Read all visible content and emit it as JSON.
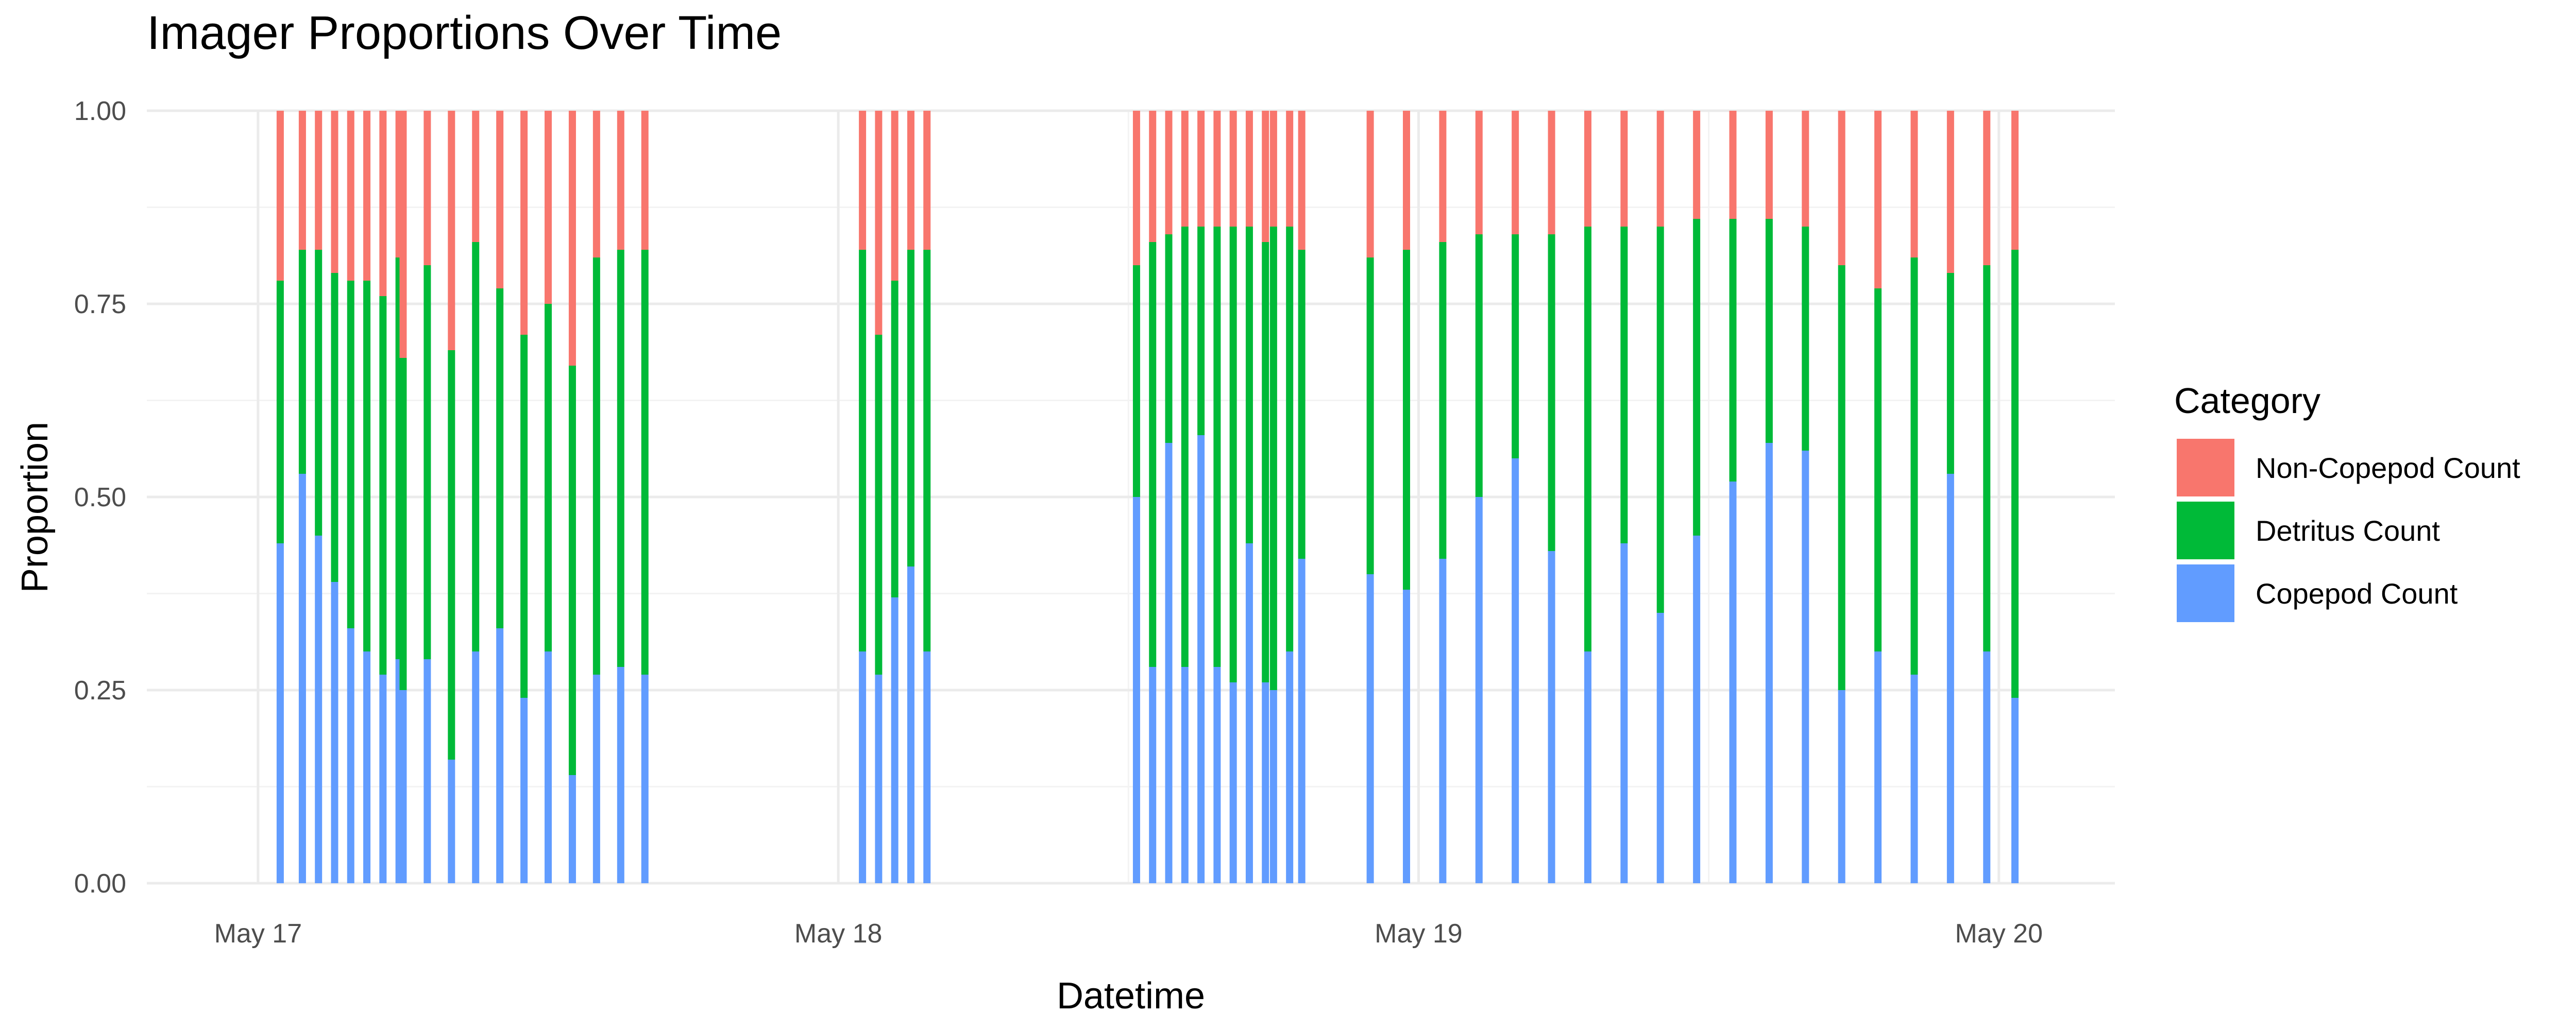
{
  "chart_data": {
    "type": "bar",
    "stacked": true,
    "title": "Imager Proportions Over Time",
    "xlabel": "Datetime",
    "ylabel": "Proportion",
    "ylim": [
      0,
      1
    ],
    "xlim": [
      "2024-05-16T19:24",
      "2024-05-20T04:48"
    ],
    "y_ticks": [
      "0.00",
      "0.25",
      "0.50",
      "0.75",
      "1.00"
    ],
    "y_tick_values": [
      0,
      0.25,
      0.5,
      0.75,
      1
    ],
    "x_ticks": [
      "May 17",
      "May 18",
      "May 19",
      "May 20"
    ],
    "x_tick_values": [
      "2024-05-17T00:00",
      "2024-05-18T00:00",
      "2024-05-19T00:00",
      "2024-05-20T00:00"
    ],
    "grid": true,
    "legend": {
      "title": "Category",
      "position": "right"
    },
    "legend_order": [
      "Non-Copepod Count",
      "Detritus Count",
      "Copepod Count"
    ],
    "stack_order": [
      "Copepod Count",
      "Detritus Count",
      "Non-Copepod Count"
    ],
    "colors": {
      "Non-Copepod Count": "#F8766D",
      "Detritus Count": "#00BA38",
      "Copepod Count": "#619CFF"
    },
    "x": [
      "2024-05-17T00:55",
      "2024-05-17T01:50",
      "2024-05-17T02:30",
      "2024-05-17T03:10",
      "2024-05-17T03:50",
      "2024-05-17T04:30",
      "2024-05-17T05:10",
      "2024-05-17T05:50",
      "2024-05-17T06:00",
      "2024-05-17T07:00",
      "2024-05-17T08:00",
      "2024-05-17T09:00",
      "2024-05-17T10:00",
      "2024-05-17T11:00",
      "2024-05-17T12:00",
      "2024-05-17T13:00",
      "2024-05-17T14:00",
      "2024-05-17T15:00",
      "2024-05-17T16:00",
      "2024-05-18T01:00",
      "2024-05-18T01:40",
      "2024-05-18T02:20",
      "2024-05-18T03:00",
      "2024-05-18T03:40",
      "2024-05-18T12:20",
      "2024-05-18T13:00",
      "2024-05-18T13:40",
      "2024-05-18T14:20",
      "2024-05-18T15:00",
      "2024-05-18T15:40",
      "2024-05-18T16:20",
      "2024-05-18T17:00",
      "2024-05-18T17:40",
      "2024-05-18T18:00",
      "2024-05-18T18:40",
      "2024-05-18T19:10",
      "2024-05-18T22:00",
      "2024-05-18T23:30",
      "2024-05-19T01:00",
      "2024-05-19T02:30",
      "2024-05-19T04:00",
      "2024-05-19T05:30",
      "2024-05-19T07:00",
      "2024-05-19T08:30",
      "2024-05-19T10:00",
      "2024-05-19T11:30",
      "2024-05-19T13:00",
      "2024-05-19T14:30",
      "2024-05-19T16:00",
      "2024-05-19T17:30",
      "2024-05-19T19:00",
      "2024-05-19T20:30",
      "2024-05-19T22:00",
      "2024-05-19T23:30",
      "2024-05-20T00:40"
    ],
    "series": [
      {
        "name": "Copepod Count",
        "values": [
          0.44,
          0.53,
          0.45,
          0.39,
          0.33,
          0.3,
          0.27,
          0.29,
          0.25,
          0.29,
          0.16,
          0.3,
          0.33,
          0.24,
          0.3,
          0.14,
          0.27,
          0.28,
          0.27,
          0.3,
          0.27,
          0.37,
          0.41,
          0.3,
          0.5,
          0.28,
          0.57,
          0.28,
          0.58,
          0.28,
          0.26,
          0.44,
          0.26,
          0.25,
          0.3,
          0.42,
          0.4,
          0.38,
          0.42,
          0.5,
          0.55,
          0.43,
          0.3,
          0.44,
          0.35,
          0.45,
          0.52,
          0.57,
          0.56,
          0.25,
          0.3,
          0.27,
          0.53,
          0.3,
          0.24
        ]
      },
      {
        "name": "Detritus Count",
        "values": [
          0.34,
          0.29,
          0.37,
          0.4,
          0.45,
          0.48,
          0.49,
          0.52,
          0.43,
          0.51,
          0.53,
          0.53,
          0.44,
          0.47,
          0.45,
          0.53,
          0.54,
          0.54,
          0.55,
          0.52,
          0.44,
          0.41,
          0.41,
          0.52,
          0.3,
          0.55,
          0.27,
          0.57,
          0.27,
          0.57,
          0.59,
          0.41,
          0.57,
          0.6,
          0.55,
          0.4,
          0.41,
          0.44,
          0.41,
          0.34,
          0.29,
          0.41,
          0.55,
          0.41,
          0.5,
          0.41,
          0.34,
          0.29,
          0.29,
          0.55,
          0.47,
          0.54,
          0.26,
          0.5,
          0.58
        ]
      },
      {
        "name": "Non-Copepod Count",
        "values": [
          0.22,
          0.18,
          0.18,
          0.21,
          0.22,
          0.22,
          0.24,
          0.19,
          0.32,
          0.2,
          0.31,
          0.17,
          0.23,
          0.29,
          0.25,
          0.33,
          0.19,
          0.18,
          0.18,
          0.18,
          0.29,
          0.22,
          0.18,
          0.18,
          0.2,
          0.17,
          0.16,
          0.15,
          0.15,
          0.15,
          0.15,
          0.15,
          0.17,
          0.15,
          0.15,
          0.18,
          0.19,
          0.18,
          0.17,
          0.16,
          0.16,
          0.16,
          0.15,
          0.15,
          0.15,
          0.14,
          0.14,
          0.14,
          0.15,
          0.2,
          0.23,
          0.19,
          0.21,
          0.2,
          0.18
        ]
      }
    ]
  }
}
